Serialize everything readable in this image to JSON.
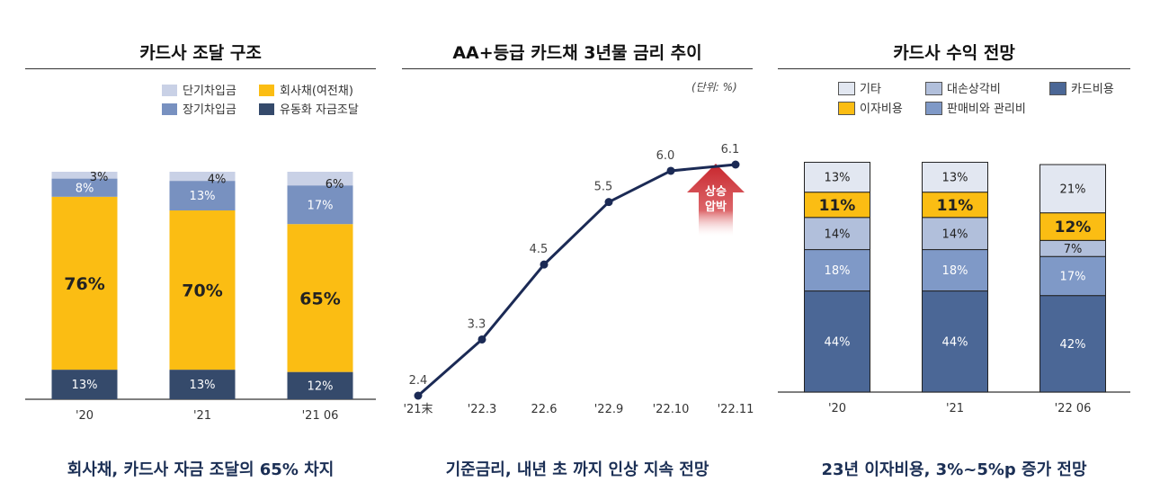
{
  "panels": {
    "left": {
      "title": "카드사 조달 구조",
      "caption": "회사채, 카드사 자금 조달의 65% 차지",
      "legend": [
        "단기차입금",
        "회사채(여전채)",
        "장기차입금",
        "유동화 자금조달"
      ]
    },
    "middle": {
      "title": "AA+등급 카드채 3년물 금리 추이",
      "unit": "(단위: %)",
      "annotation": [
        "상승",
        "압박"
      ],
      "caption": "기준금리, 내년 초 까지 인상 지속 전망"
    },
    "right": {
      "title": "카드사 수익 전망",
      "caption": "23년 이자비용, 3%~5%p 증가 전망",
      "legend": [
        "기타",
        "대손상각비",
        "카드비용",
        "이자비용",
        "판매비와 관리비"
      ]
    }
  },
  "chart_data": [
    {
      "type": "bar",
      "stacked": true,
      "title": "카드사 조달 구조",
      "categories": [
        "'20",
        "'21",
        "'21 06"
      ],
      "series": [
        {
          "name": "유동화 자금조달",
          "values": [
            13,
            13,
            12
          ],
          "color": "#354a6b"
        },
        {
          "name": "회사채(여전채)",
          "values": [
            76,
            70,
            65
          ],
          "color": "#fbbd13"
        },
        {
          "name": "장기차입금",
          "values": [
            8,
            13,
            17
          ],
          "color": "#7891c0"
        },
        {
          "name": "단기차입금",
          "values": [
            3,
            4,
            6
          ],
          "color": "#c9d1e6"
        }
      ],
      "labels": [
        [
          "13%",
          "13%",
          "12%"
        ],
        [
          "76%",
          "70%",
          "65%"
        ],
        [
          "8%",
          "13%",
          "17%"
        ],
        [
          "3%",
          "4%",
          "6%"
        ]
      ],
      "ylim": [
        0,
        100
      ]
    },
    {
      "type": "line",
      "title": "AA+등급 카드채 3년물 금리 추이",
      "categories": [
        "'21末",
        "'22.3",
        "22.6",
        "'22.9",
        "'22.10",
        "'22.11"
      ],
      "values": [
        2.4,
        3.3,
        4.5,
        5.5,
        6.0,
        6.1
      ],
      "value_labels": [
        "2.4",
        "3.3",
        "4.5",
        "5.5",
        "6.0",
        "6.1"
      ],
      "color": "#1b2a55",
      "ylim": [
        2.4,
        6.1
      ]
    },
    {
      "type": "bar",
      "stacked": true,
      "title": "카드사 수익 전망",
      "categories": [
        "'20",
        "'21",
        "'22 06"
      ],
      "series": [
        {
          "name": "카드비용",
          "values": [
            44,
            44,
            42
          ],
          "color": "#4b6796"
        },
        {
          "name": "판매비와 관리비",
          "values": [
            18,
            18,
            17
          ],
          "color": "#7f99c7"
        },
        {
          "name": "대손상각비",
          "values": [
            14,
            14,
            7
          ],
          "color": "#b1bfdb"
        },
        {
          "name": "이자비용",
          "values": [
            11,
            11,
            12
          ],
          "color": "#fbbd13"
        },
        {
          "name": "기타",
          "values": [
            13,
            13,
            21
          ],
          "color": "#e2e7f1"
        }
      ],
      "labels": [
        [
          "44%",
          "44%",
          "42%"
        ],
        [
          "18%",
          "18%",
          "17%"
        ],
        [
          "14%",
          "14%",
          "7%"
        ],
        [
          "11%",
          "11%",
          "12%"
        ],
        [
          "13%",
          "13%",
          "21%"
        ]
      ],
      "ylim": [
        0,
        99
      ]
    }
  ]
}
